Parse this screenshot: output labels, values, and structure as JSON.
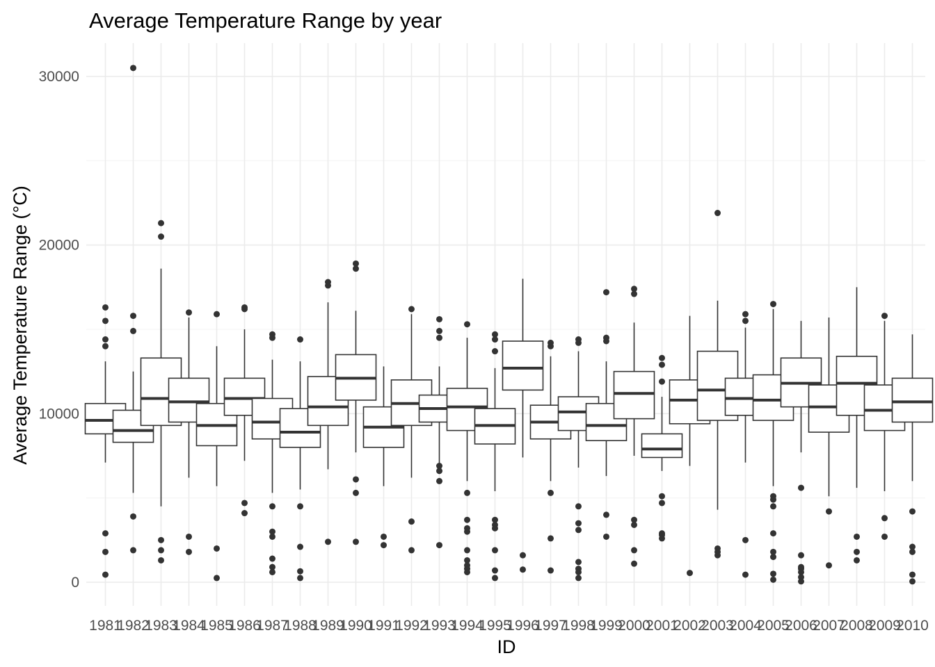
{
  "chart_data": {
    "type": "boxplot",
    "title": "Average Temperature Range by year",
    "xlabel": "ID",
    "ylabel": "Average Temperature Range (°C)",
    "ylim": [
      -1500,
      32000
    ],
    "y_ticks": [
      0,
      10000,
      20000,
      30000
    ],
    "grid": true,
    "legend": "none",
    "colors": {
      "box_line": "#333333",
      "outlier": "#333333",
      "grid_major": "#ebebeb",
      "grid_minor": "#f5f5f5"
    },
    "categories": [
      "1981",
      "1982",
      "1983",
      "1984",
      "1985",
      "1986",
      "1987",
      "1988",
      "1989",
      "1990",
      "1991",
      "1992",
      "1993",
      "1994",
      "1995",
      "1996",
      "1997",
      "1998",
      "1999",
      "2000",
      "2001",
      "2002",
      "2003",
      "2004",
      "2005",
      "2006",
      "2007",
      "2008",
      "2009",
      "2010"
    ],
    "boxes": [
      {
        "category": "1981",
        "whisker_low": 7100,
        "q1": 8800,
        "median": 9600,
        "q3": 10600,
        "whisker_high": 13100,
        "outliers": [
          16300,
          15500,
          14400,
          14000,
          2900,
          1800,
          450
        ]
      },
      {
        "category": "1982",
        "whisker_low": 5300,
        "q1": 8300,
        "median": 9000,
        "q3": 10200,
        "whisker_high": 12500,
        "outliers": [
          30500,
          15800,
          14900,
          3900,
          1900
        ]
      },
      {
        "category": "1983",
        "whisker_low": 4500,
        "q1": 9300,
        "median": 10900,
        "q3": 13300,
        "whisker_high": 18600,
        "outliers": [
          21300,
          20500,
          2500,
          1900,
          1300
        ]
      },
      {
        "category": "1984",
        "whisker_low": 6200,
        "q1": 9500,
        "median": 10700,
        "q3": 12100,
        "whisker_high": 15700,
        "outliers": [
          16000,
          2700,
          1800
        ]
      },
      {
        "category": "1985",
        "whisker_low": 5700,
        "q1": 8100,
        "median": 9300,
        "q3": 10600,
        "whisker_high": 14000,
        "outliers": [
          15900,
          2000,
          250
        ]
      },
      {
        "category": "1986",
        "whisker_low": 7200,
        "q1": 9900,
        "median": 10900,
        "q3": 12100,
        "whisker_high": 15000,
        "outliers": [
          16300,
          16200,
          4700,
          4100
        ]
      },
      {
        "category": "1987",
        "whisker_low": 5300,
        "q1": 8500,
        "median": 9500,
        "q3": 10900,
        "whisker_high": 13200,
        "outliers": [
          14700,
          14500,
          4500,
          3000,
          2700,
          1400,
          900,
          600
        ]
      },
      {
        "category": "1988",
        "whisker_low": 5500,
        "q1": 8000,
        "median": 8900,
        "q3": 10300,
        "whisker_high": 13100,
        "outliers": [
          14400,
          4500,
          2100,
          650,
          250
        ]
      },
      {
        "category": "1989",
        "whisker_low": 6700,
        "q1": 9300,
        "median": 10400,
        "q3": 12200,
        "whisker_high": 16600,
        "outliers": [
          17800,
          17600,
          2400
        ]
      },
      {
        "category": "1990",
        "whisker_low": 7700,
        "q1": 10800,
        "median": 12100,
        "q3": 13500,
        "whisker_high": 16100,
        "outliers": [
          18900,
          18600,
          6100,
          5300,
          2400
        ]
      },
      {
        "category": "1991",
        "whisker_low": 5700,
        "q1": 8000,
        "median": 9200,
        "q3": 10400,
        "whisker_high": 12800,
        "outliers": [
          2700,
          2200
        ]
      },
      {
        "category": "1992",
        "whisker_low": 6200,
        "q1": 9300,
        "median": 10600,
        "q3": 12000,
        "whisker_high": 15900,
        "outliers": [
          16200,
          3600,
          1900
        ]
      },
      {
        "category": "1993",
        "whisker_low": 7000,
        "q1": 9500,
        "median": 10300,
        "q3": 11100,
        "whisker_high": 12800,
        "outliers": [
          15600,
          14900,
          14500,
          6900,
          6600,
          6000,
          2200
        ]
      },
      {
        "category": "1994",
        "whisker_low": 6000,
        "q1": 9000,
        "median": 10400,
        "q3": 11500,
        "whisker_high": 14500,
        "outliers": [
          15300,
          5300,
          3700,
          3200,
          3000,
          1900,
          1300,
          1000,
          800,
          600
        ]
      },
      {
        "category": "1995",
        "whisker_low": 5400,
        "q1": 8200,
        "median": 9300,
        "q3": 10300,
        "whisker_high": 12700,
        "outliers": [
          14700,
          14400,
          13700,
          3700,
          3400,
          3200,
          1900,
          700,
          250
        ]
      },
      {
        "category": "1996",
        "whisker_low": 7400,
        "q1": 11400,
        "median": 12700,
        "q3": 14300,
        "whisker_high": 18000,
        "outliers": [
          1600,
          750
        ]
      },
      {
        "category": "1997",
        "whisker_low": 6000,
        "q1": 8500,
        "median": 9500,
        "q3": 10500,
        "whisker_high": 13400,
        "outliers": [
          14200,
          14000,
          5300,
          2600,
          700
        ]
      },
      {
        "category": "1998",
        "whisker_low": 6800,
        "q1": 9000,
        "median": 10100,
        "q3": 11000,
        "whisker_high": 13700,
        "outliers": [
          14400,
          14200,
          4500,
          3500,
          3100,
          1200,
          800,
          600,
          250
        ]
      },
      {
        "category": "1999",
        "whisker_low": 6300,
        "q1": 8400,
        "median": 9300,
        "q3": 10600,
        "whisker_high": 13100,
        "outliers": [
          17200,
          14500,
          14300,
          4000,
          2700
        ]
      },
      {
        "category": "2000",
        "whisker_low": 7500,
        "q1": 9700,
        "median": 11200,
        "q3": 12500,
        "whisker_high": 15400,
        "outliers": [
          17400,
          17100,
          3700,
          3400,
          1900,
          1100
        ]
      },
      {
        "category": "2001",
        "whisker_low": 6600,
        "q1": 7400,
        "median": 7900,
        "q3": 8800,
        "whisker_high": 11000,
        "outliers": [
          13300,
          12900,
          11900,
          5100,
          4700,
          2900,
          2800,
          2600
        ]
      },
      {
        "category": "2002",
        "whisker_low": 6900,
        "q1": 9400,
        "median": 10800,
        "q3": 12000,
        "whisker_high": 15800,
        "outliers": [
          550
        ]
      },
      {
        "category": "2003",
        "whisker_low": 4300,
        "q1": 9600,
        "median": 11400,
        "q3": 13700,
        "whisker_high": 16700,
        "outliers": [
          21900,
          2000,
          1800,
          1600
        ]
      },
      {
        "category": "2004",
        "whisker_low": 7100,
        "q1": 9900,
        "median": 10900,
        "q3": 12100,
        "whisker_high": 15100,
        "outliers": [
          15900,
          15500,
          2500,
          450
        ]
      },
      {
        "category": "2005",
        "whisker_low": 5700,
        "q1": 9600,
        "median": 10800,
        "q3": 12300,
        "whisker_high": 16200,
        "outliers": [
          16500,
          5100,
          4900,
          4500,
          2900,
          1800,
          1500,
          500,
          150
        ]
      },
      {
        "category": "2006",
        "whisker_low": 7700,
        "q1": 10400,
        "median": 11800,
        "q3": 13300,
        "whisker_high": 15500,
        "outliers": [
          5600,
          1600,
          900,
          800,
          600,
          300,
          50
        ]
      },
      {
        "category": "2007",
        "whisker_low": 5100,
        "q1": 8900,
        "median": 10400,
        "q3": 11700,
        "whisker_high": 15700,
        "outliers": [
          4200,
          1000
        ]
      },
      {
        "category": "2008",
        "whisker_low": 5600,
        "q1": 9900,
        "median": 11800,
        "q3": 13400,
        "whisker_high": 17500,
        "outliers": [
          2700,
          1800,
          1300
        ]
      },
      {
        "category": "2009",
        "whisker_low": 5400,
        "q1": 9000,
        "median": 10200,
        "q3": 11700,
        "whisker_high": 15500,
        "outliers": [
          15800,
          3800,
          2700
        ]
      },
      {
        "category": "2010",
        "whisker_low": 6000,
        "q1": 9500,
        "median": 10700,
        "q3": 12100,
        "whisker_high": 14700,
        "outliers": [
          4200,
          2100,
          1800,
          450,
          50
        ]
      }
    ]
  }
}
